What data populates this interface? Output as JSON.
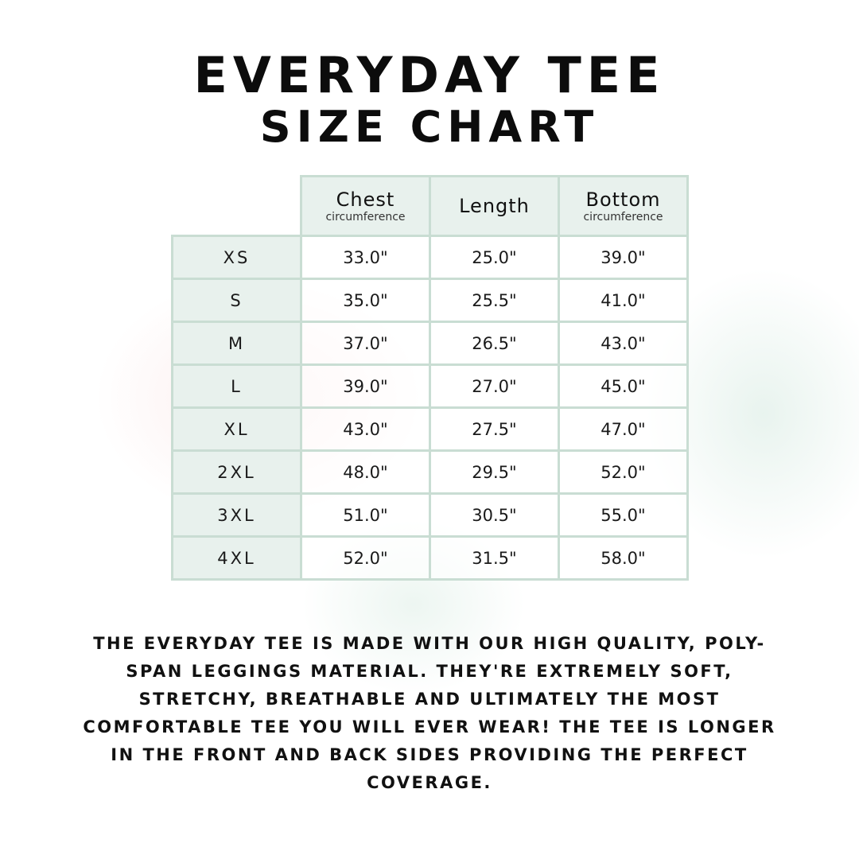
{
  "title": {
    "line1": "EVERYDAY TEE",
    "line2": "SIZE CHART"
  },
  "table": {
    "headers": [
      {
        "main": "Chest",
        "sub": "circumference"
      },
      {
        "main": "Length",
        "sub": ""
      },
      {
        "main": "Bottom",
        "sub": "circumference"
      }
    ],
    "rows": [
      {
        "size": "XS",
        "chest": "33.0\"",
        "length": "25.0\"",
        "bottom": "39.0\""
      },
      {
        "size": "S",
        "chest": "35.0\"",
        "length": "25.5\"",
        "bottom": "41.0\""
      },
      {
        "size": "M",
        "chest": "37.0\"",
        "length": "26.5\"",
        "bottom": "43.0\""
      },
      {
        "size": "L",
        "chest": "39.0\"",
        "length": "27.0\"",
        "bottom": "45.0\""
      },
      {
        "size": "XL",
        "chest": "43.0\"",
        "length": "27.5\"",
        "bottom": "47.0\""
      },
      {
        "size": "2XL",
        "chest": "48.0\"",
        "length": "29.5\"",
        "bottom": "52.0\""
      },
      {
        "size": "3XL",
        "chest": "51.0\"",
        "length": "30.5\"",
        "bottom": "55.0\""
      },
      {
        "size": "4XL",
        "chest": "52.0\"",
        "length": "31.5\"",
        "bottom": "58.0\""
      }
    ]
  },
  "description": "THE EVERYDAY TEE IS MADE WITH OUR HIGH QUALITY, POLY-SPAN LEGGINGS MATERIAL. THEY'RE EXTREMELY SOFT, STRETCHY, BREATHABLE AND ULTIMATELY THE MOST COMFORTABLE TEE YOU WILL EVER WEAR! THE TEE IS LONGER IN THE FRONT AND BACK SIDES PROVIDING THE PERFECT COVERAGE.",
  "colors": {
    "header_fill": "#e8f1ed",
    "border": "#c9ddd3"
  }
}
